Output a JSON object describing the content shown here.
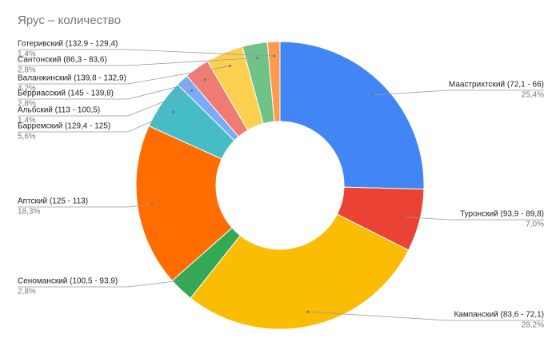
{
  "chart_data": {
    "type": "pie",
    "donut": true,
    "title": "Ярус – количество",
    "categories": [
      "Маастрихтский (72,1 - 66)",
      "Туронский (93,9 - 89,8)",
      "Кампанский (83,6 - 72,1)",
      "Сеноманский (100,5 - 93,9)",
      "Аптский (125 - 113)",
      "Барремский (129,4 - 125)",
      "Альбский (113 - 100,5)",
      "Берриасский (145 - 139,8)",
      "Валанжинский (139,8 - 132,9)",
      "Сантонский (86,3 - 83,6)",
      "Готеривский (132,9 - 129,4)"
    ],
    "values": [
      25.4,
      7.0,
      28.2,
      2.8,
      18.3,
      5.6,
      1.4,
      2.8,
      4.2,
      2.8,
      1.4
    ],
    "value_labels": [
      "25,4%",
      "7,0%",
      "28,2%",
      "2,8%",
      "18,3%",
      "5,6%",
      "1,4%",
      "2,8%",
      "4,2%",
      "2,8%",
      "1,4%"
    ],
    "colors": [
      "#4285f4",
      "#ea4335",
      "#fbbc04",
      "#34a853",
      "#ff6d01",
      "#46bdc6",
      "#7baaf7",
      "#f07b72",
      "#fcd04f",
      "#71c287",
      "#ff994d"
    ]
  }
}
